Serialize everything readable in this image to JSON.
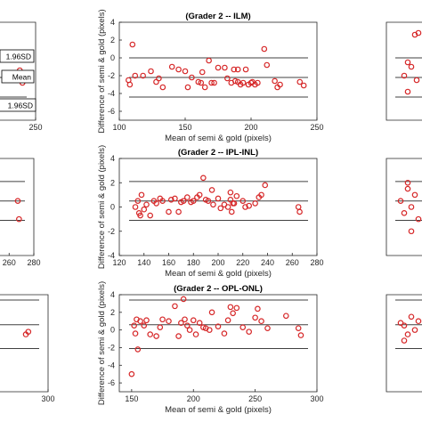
{
  "chart_data": [
    {
      "type": "scatter",
      "panel": "center-top",
      "title": "(Grader 2 -- ILM)",
      "xlabel": "Mean of semi & gold (pixels)",
      "ylabel": "Difference of semi & gold (pixels)",
      "xlim": [
        100,
        250
      ],
      "ylim": [
        -7,
        4
      ],
      "xticks": [
        100,
        150,
        200,
        250
      ],
      "yticks": [
        -6,
        -4,
        -2,
        0,
        2,
        4
      ],
      "lines": {
        "mean": -2.2,
        "upper": 0.0,
        "lower": -4.4
      },
      "x": [
        110,
        112,
        107,
        108,
        118,
        124,
        128,
        130,
        133,
        140,
        145,
        150,
        152,
        155,
        160,
        162,
        163,
        165,
        168,
        170,
        172,
        175,
        180,
        182,
        185,
        187,
        188,
        190,
        190,
        192,
        194,
        196,
        198,
        200,
        201,
        203,
        205,
        210,
        212,
        218,
        220,
        222,
        237,
        240
      ],
      "y": [
        1.5,
        -2.0,
        -2.5,
        -3.0,
        -2.0,
        -1.5,
        -2.7,
        -2.3,
        -3.3,
        -1.0,
        -1.3,
        -1.5,
        -3.3,
        -2.2,
        -2.7,
        -2.8,
        -1.6,
        -3.3,
        -0.3,
        -2.8,
        -2.8,
        -1.1,
        -1.1,
        -2.3,
        -2.8,
        -1.3,
        -2.6,
        -1.3,
        -2.7,
        -3.0,
        -2.8,
        -1.3,
        -3.0,
        -2.8,
        -2.7,
        -3.0,
        -2.8,
        1.0,
        -0.8,
        -2.6,
        -3.3,
        -3.0,
        -2.7,
        -3.1
      ]
    },
    {
      "type": "scatter",
      "panel": "center-middle",
      "title": "(Grader 2 -- IPL-INL)",
      "xlabel": "Mean of semi & gold (pixels)",
      "ylabel": "Difference of semi & gold (pixels)",
      "xlim": [
        120,
        280
      ],
      "ylim": [
        -4,
        4
      ],
      "xticks": [
        120,
        140,
        160,
        180,
        200,
        220,
        240,
        260,
        280
      ],
      "yticks": [
        -4,
        -2,
        0,
        2,
        4
      ],
      "lines": {
        "mean": 0.5,
        "upper": 2.1,
        "lower": -1.1
      },
      "x": [
        133,
        135,
        136,
        137,
        138,
        140,
        142,
        145,
        148,
        150,
        153,
        155,
        160,
        162,
        165,
        168,
        170,
        172,
        175,
        178,
        180,
        183,
        185,
        188,
        190,
        192,
        195,
        196,
        200,
        202,
        205,
        208,
        210,
        210,
        211,
        212,
        213,
        215,
        220,
        222,
        225,
        230,
        233,
        235,
        238,
        265,
        266
      ],
      "y": [
        0.0,
        0.5,
        -0.5,
        -0.7,
        1.0,
        -0.2,
        0.2,
        -0.7,
        0.5,
        0.3,
        0.7,
        0.5,
        -0.4,
        0.6,
        0.7,
        -0.4,
        0.4,
        0.5,
        0.8,
        0.4,
        0.5,
        0.8,
        1.0,
        2.4,
        0.6,
        0.5,
        1.4,
        0.2,
        0.7,
        -0.1,
        0.2,
        0.0,
        1.2,
        0.6,
        -0.4,
        0.3,
        0.3,
        0.9,
        0.5,
        0.0,
        0.1,
        0.3,
        0.8,
        1.0,
        1.8,
        0.0,
        -0.4
      ]
    },
    {
      "type": "scatter",
      "panel": "center-bottom",
      "title": "(Grader 2 -- OPL-ONL)",
      "xlabel": "Mean of semi & gold (pixels)",
      "ylabel": "Difference of semi & gold (pixels)",
      "xlim": [
        140,
        300
      ],
      "ylim": [
        -7,
        4
      ],
      "xticks": [
        150,
        200,
        250,
        300
      ],
      "yticks": [
        -6,
        -4,
        -2,
        0,
        2,
        4
      ],
      "lines": {
        "mean": 0.6,
        "upper": 3.4,
        "lower": -2.1
      },
      "x": [
        150,
        152,
        153,
        154,
        155,
        157,
        160,
        162,
        165,
        170,
        173,
        175,
        180,
        185,
        188,
        190,
        192,
        193,
        195,
        197,
        200,
        202,
        205,
        208,
        210,
        213,
        215,
        220,
        225,
        228,
        230,
        232,
        235,
        240,
        245,
        250,
        252,
        255,
        260,
        275,
        285,
        287
      ],
      "y": [
        -5.0,
        0.5,
        -0.4,
        1.2,
        -2.2,
        1.0,
        0.5,
        1.1,
        -0.5,
        -0.7,
        0.3,
        1.2,
        1.0,
        2.7,
        -0.7,
        0.8,
        3.5,
        1.2,
        0.5,
        0.0,
        1.1,
        -0.5,
        0.8,
        0.3,
        0.2,
        0.0,
        2.0,
        0.4,
        -0.4,
        1.1,
        2.6,
        1.9,
        2.5,
        0.3,
        -0.2,
        1.4,
        2.4,
        1.0,
        0.2,
        1.6,
        0.2,
        -0.6
      ]
    },
    {
      "type": "scatter",
      "panel": "left-top",
      "xticks": [
        250
      ],
      "annotations": [
        "1.96SD",
        "Mean",
        "1.96SD"
      ],
      "x": [
        238,
        240
      ],
      "y": [
        -1.4,
        -2.8
      ]
    },
    {
      "type": "scatter",
      "panel": "left-middle",
      "xticks": [
        260,
        280
      ],
      "x": [
        267,
        268
      ],
      "y": [
        0.5,
        -1.0
      ]
    },
    {
      "type": "scatter",
      "panel": "left-bottom",
      "xticks": [
        300
      ],
      "x": [
        282,
        284
      ],
      "y": [
        -0.5,
        -0.2
      ]
    },
    {
      "type": "scatter",
      "panel": "right-top",
      "x": [
        0.8,
        0.9,
        0.6,
        0.7,
        0.5,
        0.85,
        0.6
      ],
      "y": [
        2.6,
        2.8,
        -0.5,
        -1.0,
        -2.0,
        -2.5,
        -3.8
      ]
    },
    {
      "type": "scatter",
      "panel": "right-middle",
      "x": [
        0.4,
        0.6,
        0.7,
        0.5,
        0.8,
        0.6,
        0.9,
        0.7
      ],
      "y": [
        0.5,
        1.5,
        0.0,
        -0.5,
        1.0,
        2.0,
        -1.0,
        -2.0
      ]
    },
    {
      "type": "scatter",
      "panel": "right-bottom",
      "x": [
        0.4,
        0.5,
        0.7,
        0.6,
        0.8,
        0.5,
        0.9
      ],
      "y": [
        0.8,
        0.5,
        1.5,
        -0.5,
        0.0,
        -1.2,
        1.0
      ]
    }
  ],
  "colors": {
    "marker": "#d62728",
    "line": "#404040",
    "axis": "#262626"
  }
}
